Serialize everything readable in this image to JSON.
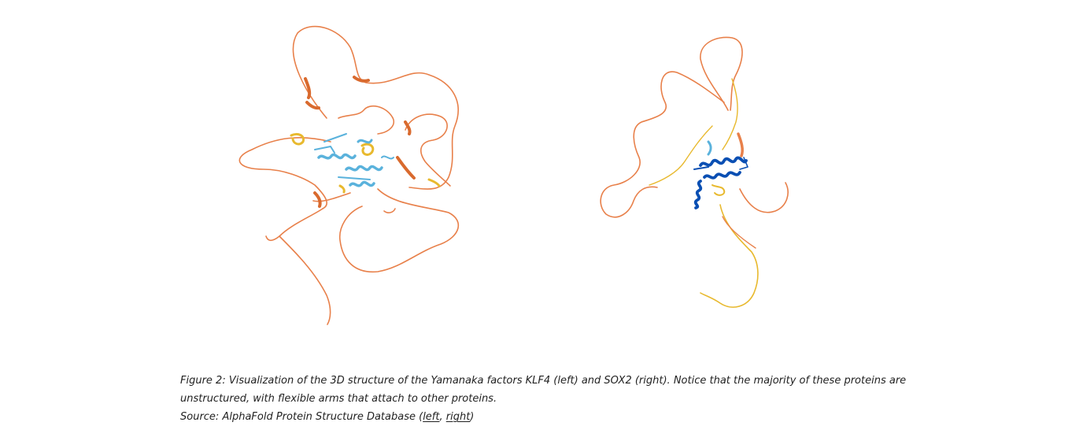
{
  "figure": {
    "images": [
      {
        "name": "KLF4",
        "position": "left"
      },
      {
        "name": "SOX2",
        "position": "right"
      }
    ]
  },
  "caption": {
    "text": "Figure 2: Visualization of the 3D structure of the Yamanaka factors KLF4 (left) and SOX2 (right). Notice that the majority of these proteins are unstructured, with flexible arms that attach to other proteins.",
    "source_prefix": "Source: AlphaFold Protein Structure Database (",
    "link_left": "left",
    "separator": ", ",
    "link_right": "right",
    "source_suffix": ")"
  },
  "colors": {
    "very_low_confidence": "#e8804a",
    "low_confidence": "#e8b92e",
    "confident": "#5ab2dc",
    "very_high_confidence": "#0a4fb3",
    "caption_text": "#222222"
  }
}
